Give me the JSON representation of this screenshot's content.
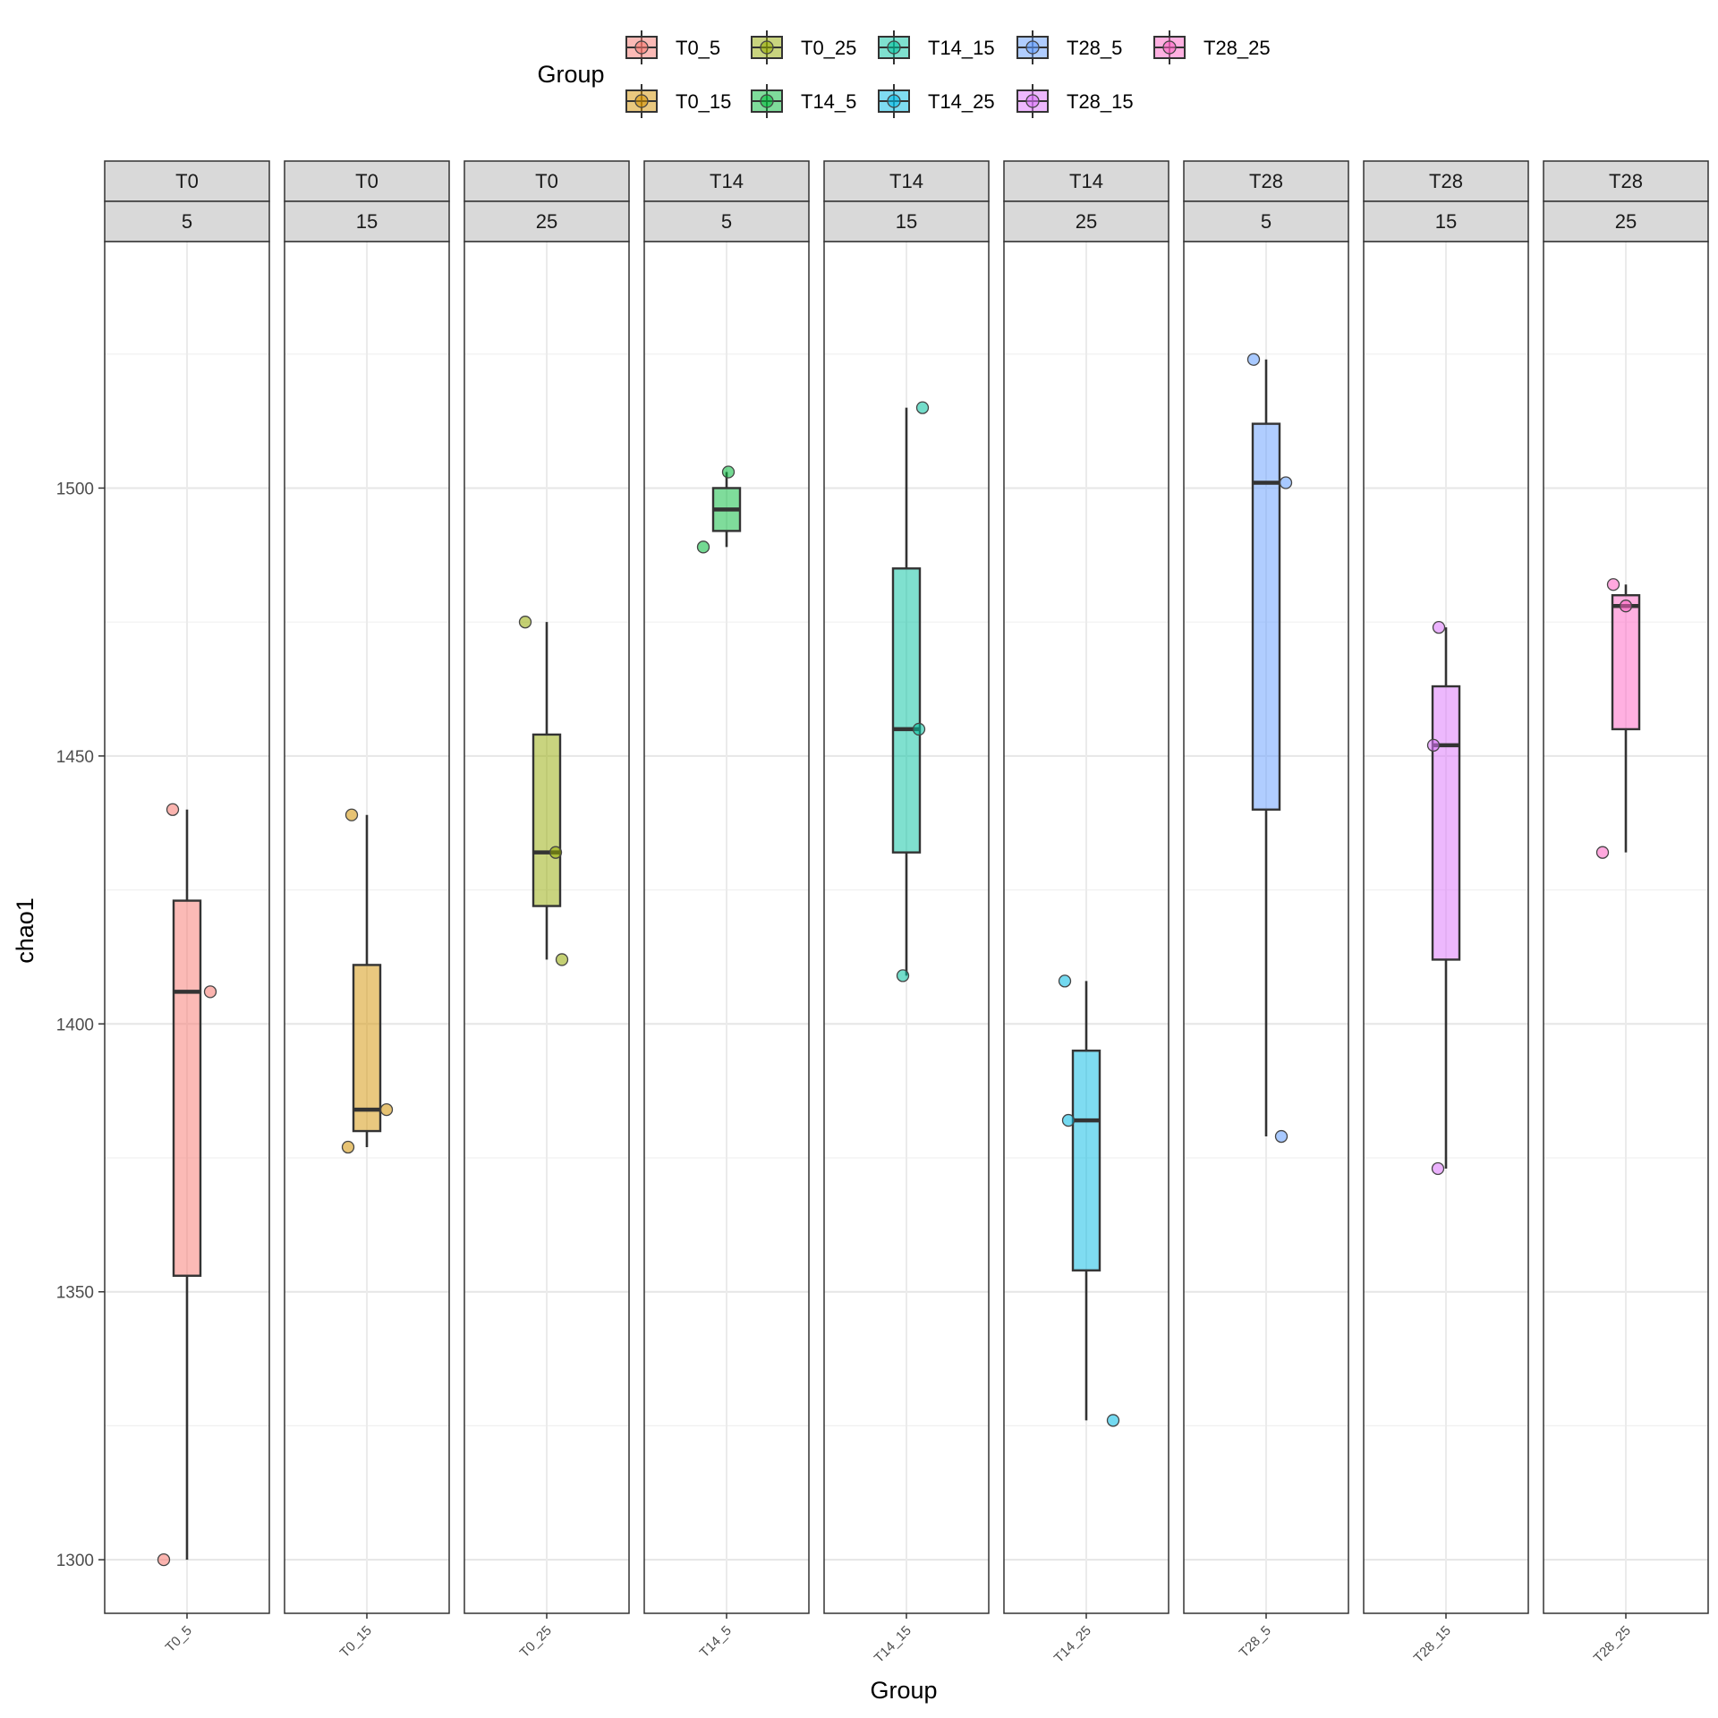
{
  "chart_data": {
    "type": "box",
    "ylabel": "chao1",
    "xlabel": "Group",
    "ylim": [
      1290,
      1546
    ],
    "yticks": [
      1300,
      1350,
      1400,
      1450,
      1500
    ],
    "grid": true,
    "legend": {
      "title": "Group",
      "position": "top",
      "entries": [
        "T0_5",
        "T0_25",
        "T14_15",
        "T28_5",
        "T28_25",
        "T0_15",
        "T14_5",
        "T14_25",
        "T28_15"
      ]
    },
    "panels": [
      {
        "strip_top": "T0",
        "strip_bottom": "5",
        "group": "T0_5",
        "color": "#F8766D",
        "box": {
          "lower_whisker": 1300,
          "q1": 1353,
          "median": 1406,
          "q3": 1423,
          "upper_whisker": 1440
        },
        "points": [
          1440,
          1406,
          1300
        ]
      },
      {
        "strip_top": "T0",
        "strip_bottom": "15",
        "group": "T0_15",
        "color": "#D39200",
        "box": {
          "lower_whisker": 1377,
          "q1": 1380,
          "median": 1384,
          "q3": 1411,
          "upper_whisker": 1439
        },
        "points": [
          1439,
          1384,
          1377
        ]
      },
      {
        "strip_top": "T0",
        "strip_bottom": "25",
        "group": "T0_25",
        "color": "#93AA00",
        "box": {
          "lower_whisker": 1412,
          "q1": 1422,
          "median": 1432,
          "q3": 1454,
          "upper_whisker": 1475
        },
        "points": [
          1475,
          1432,
          1412
        ]
      },
      {
        "strip_top": "T14",
        "strip_bottom": "5",
        "group": "T14_5",
        "color": "#00BA38",
        "box": {
          "lower_whisker": 1489,
          "q1": 1492,
          "median": 1496,
          "q3": 1500,
          "upper_whisker": 1503
        },
        "points": [
          1503,
          1489
        ]
      },
      {
        "strip_top": "T14",
        "strip_bottom": "15",
        "group": "T14_15",
        "color": "#00C19F",
        "box": {
          "lower_whisker": 1409,
          "q1": 1432,
          "median": 1455,
          "q3": 1485,
          "upper_whisker": 1515
        },
        "points": [
          1515,
          1455,
          1409
        ]
      },
      {
        "strip_top": "T14",
        "strip_bottom": "25",
        "group": "T14_25",
        "color": "#00B9E3",
        "box": {
          "lower_whisker": 1326,
          "q1": 1354,
          "median": 1382,
          "q3": 1395,
          "upper_whisker": 1408
        },
        "points": [
          1408,
          1382,
          1326
        ]
      },
      {
        "strip_top": "T28",
        "strip_bottom": "5",
        "group": "T28_5",
        "color": "#619CFF",
        "box": {
          "lower_whisker": 1379,
          "q1": 1440,
          "median": 1501,
          "q3": 1512,
          "upper_whisker": 1524
        },
        "points": [
          1524,
          1501,
          1379
        ]
      },
      {
        "strip_top": "T28",
        "strip_bottom": "15",
        "group": "T28_15",
        "color": "#DB72FB",
        "box": {
          "lower_whisker": 1373,
          "q1": 1412,
          "median": 1452,
          "q3": 1463,
          "upper_whisker": 1474
        },
        "points": [
          1474,
          1452,
          1373
        ]
      },
      {
        "strip_top": "T28",
        "strip_bottom": "25",
        "group": "T28_25",
        "color": "#FF61C3",
        "box": {
          "lower_whisker": 1432,
          "q1": 1455,
          "median": 1478,
          "q3": 1480,
          "upper_whisker": 1482
        },
        "points": [
          1482,
          1478,
          1432
        ]
      }
    ]
  }
}
